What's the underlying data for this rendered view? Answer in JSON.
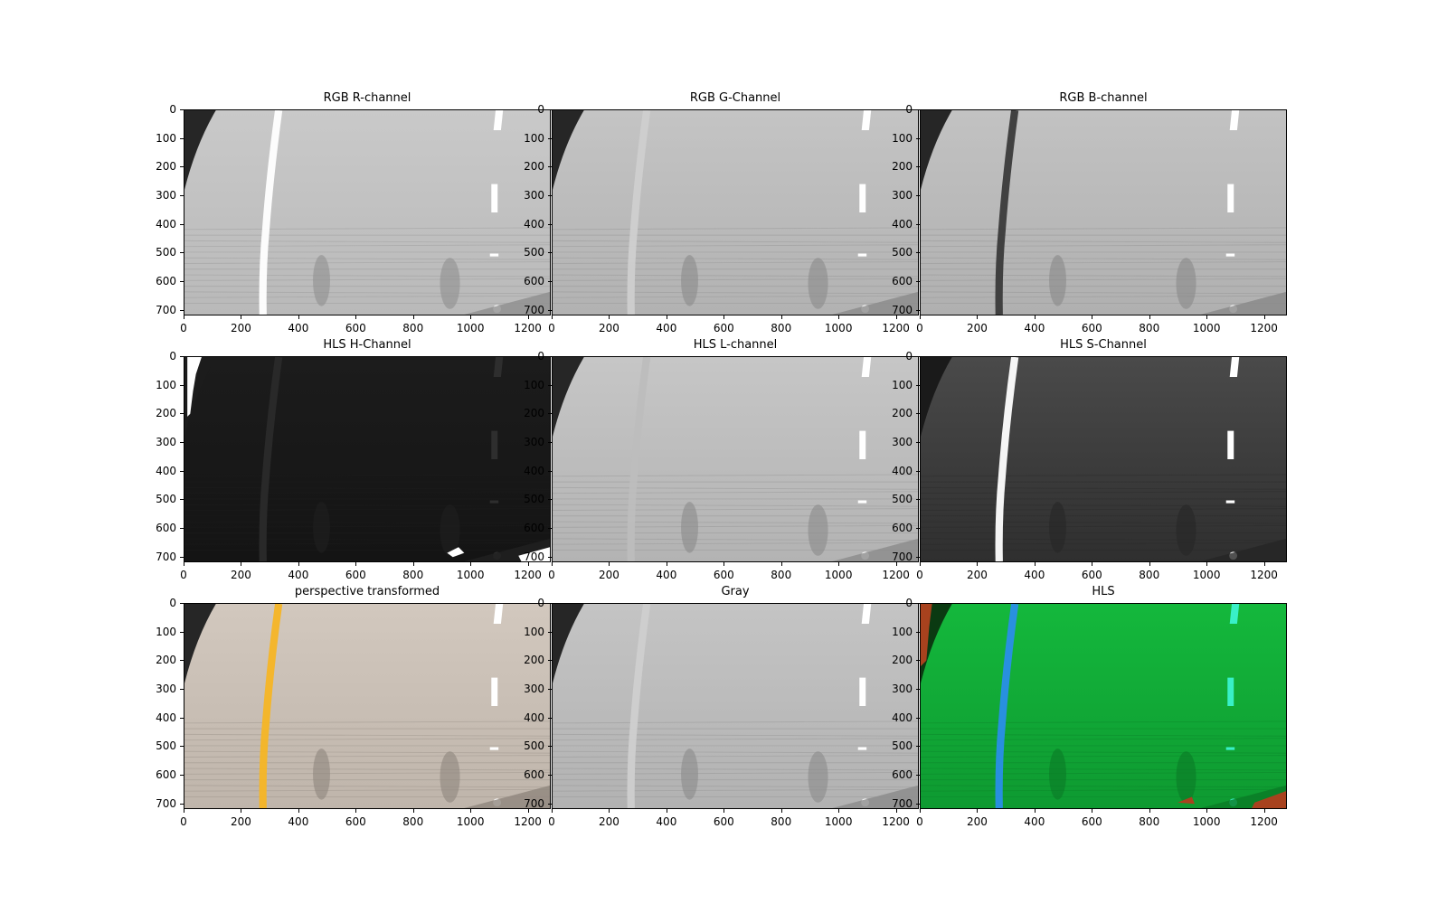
{
  "figure": {
    "panels": [
      {
        "id": "r",
        "title": "RGB R-channel",
        "style": "gray-r"
      },
      {
        "id": "g",
        "title": "RGB G-Channel",
        "style": "gray-g"
      },
      {
        "id": "b",
        "title": "RGB B-channel",
        "style": "gray-b"
      },
      {
        "id": "h",
        "title": "HLS H-Channel",
        "style": "dark-h"
      },
      {
        "id": "l",
        "title": "HLS L-channel",
        "style": "gray-l"
      },
      {
        "id": "s",
        "title": "HLS S-Channel",
        "style": "dark-s"
      },
      {
        "id": "p",
        "title": "perspective transformed",
        "style": "color-p"
      },
      {
        "id": "gray",
        "title": "Gray",
        "style": "gray-g"
      },
      {
        "id": "hls",
        "title": "HLS",
        "style": "hls-green"
      }
    ],
    "y_ticks": [
      "0",
      "100",
      "200",
      "300",
      "400",
      "500",
      "600",
      "700"
    ],
    "x_ticks": [
      "0",
      "200",
      "400",
      "600",
      "800",
      "1000",
      "1200"
    ],
    "x_range": [
      0,
      1280
    ],
    "y_range": [
      0,
      720
    ]
  }
}
